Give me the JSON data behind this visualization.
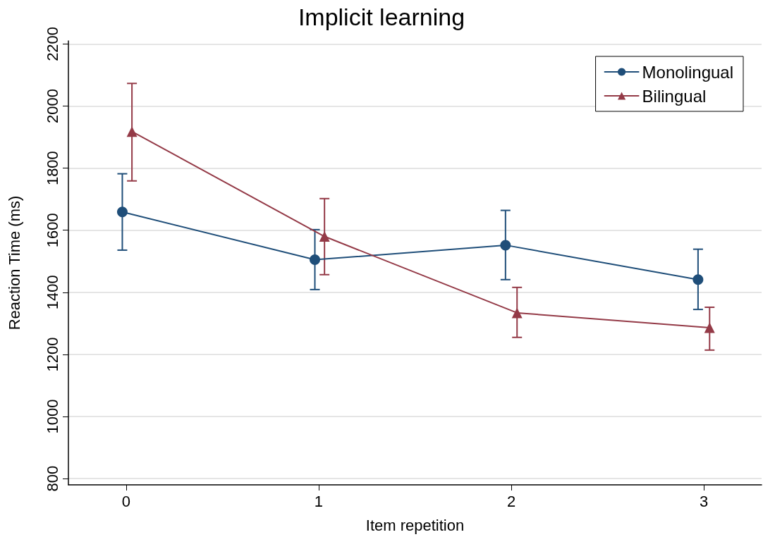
{
  "chart_data": {
    "type": "line",
    "title": "Implicit learning",
    "xlabel": "Item repetition",
    "ylabel": "Reaction Time (ms)",
    "series": [
      {
        "name": "Monolingual",
        "color": "#1f4e79",
        "marker": "circle",
        "x": [
          -0.02,
          0.98,
          1.97,
          2.97
        ],
        "values": [
          1659,
          1505,
          1552,
          1441
        ],
        "errors": [
          [
            1536,
            1782
          ],
          [
            1409,
            1602
          ],
          [
            1441,
            1664
          ],
          [
            1345,
            1539
          ]
        ]
      },
      {
        "name": "Bilingual",
        "color": "#943a47",
        "marker": "triangle",
        "x": [
          0.03,
          1.03,
          2.03,
          3.03
        ],
        "values": [
          1918,
          1580,
          1334,
          1286
        ],
        "errors": [
          [
            1759,
            2073
          ],
          [
            1457,
            1702
          ],
          [
            1255,
            1416
          ],
          [
            1214,
            1352
          ]
        ]
      }
    ],
    "xlim": [
      -0.3,
      3.3
    ],
    "xticks": [
      0,
      1,
      2,
      3
    ],
    "ylim": [
      780,
      2210
    ],
    "yticks": [
      800,
      1000,
      1200,
      1400,
      1600,
      1800,
      2000,
      2200
    ],
    "grid": "y",
    "legend": "top right",
    "line_style": "solid"
  }
}
